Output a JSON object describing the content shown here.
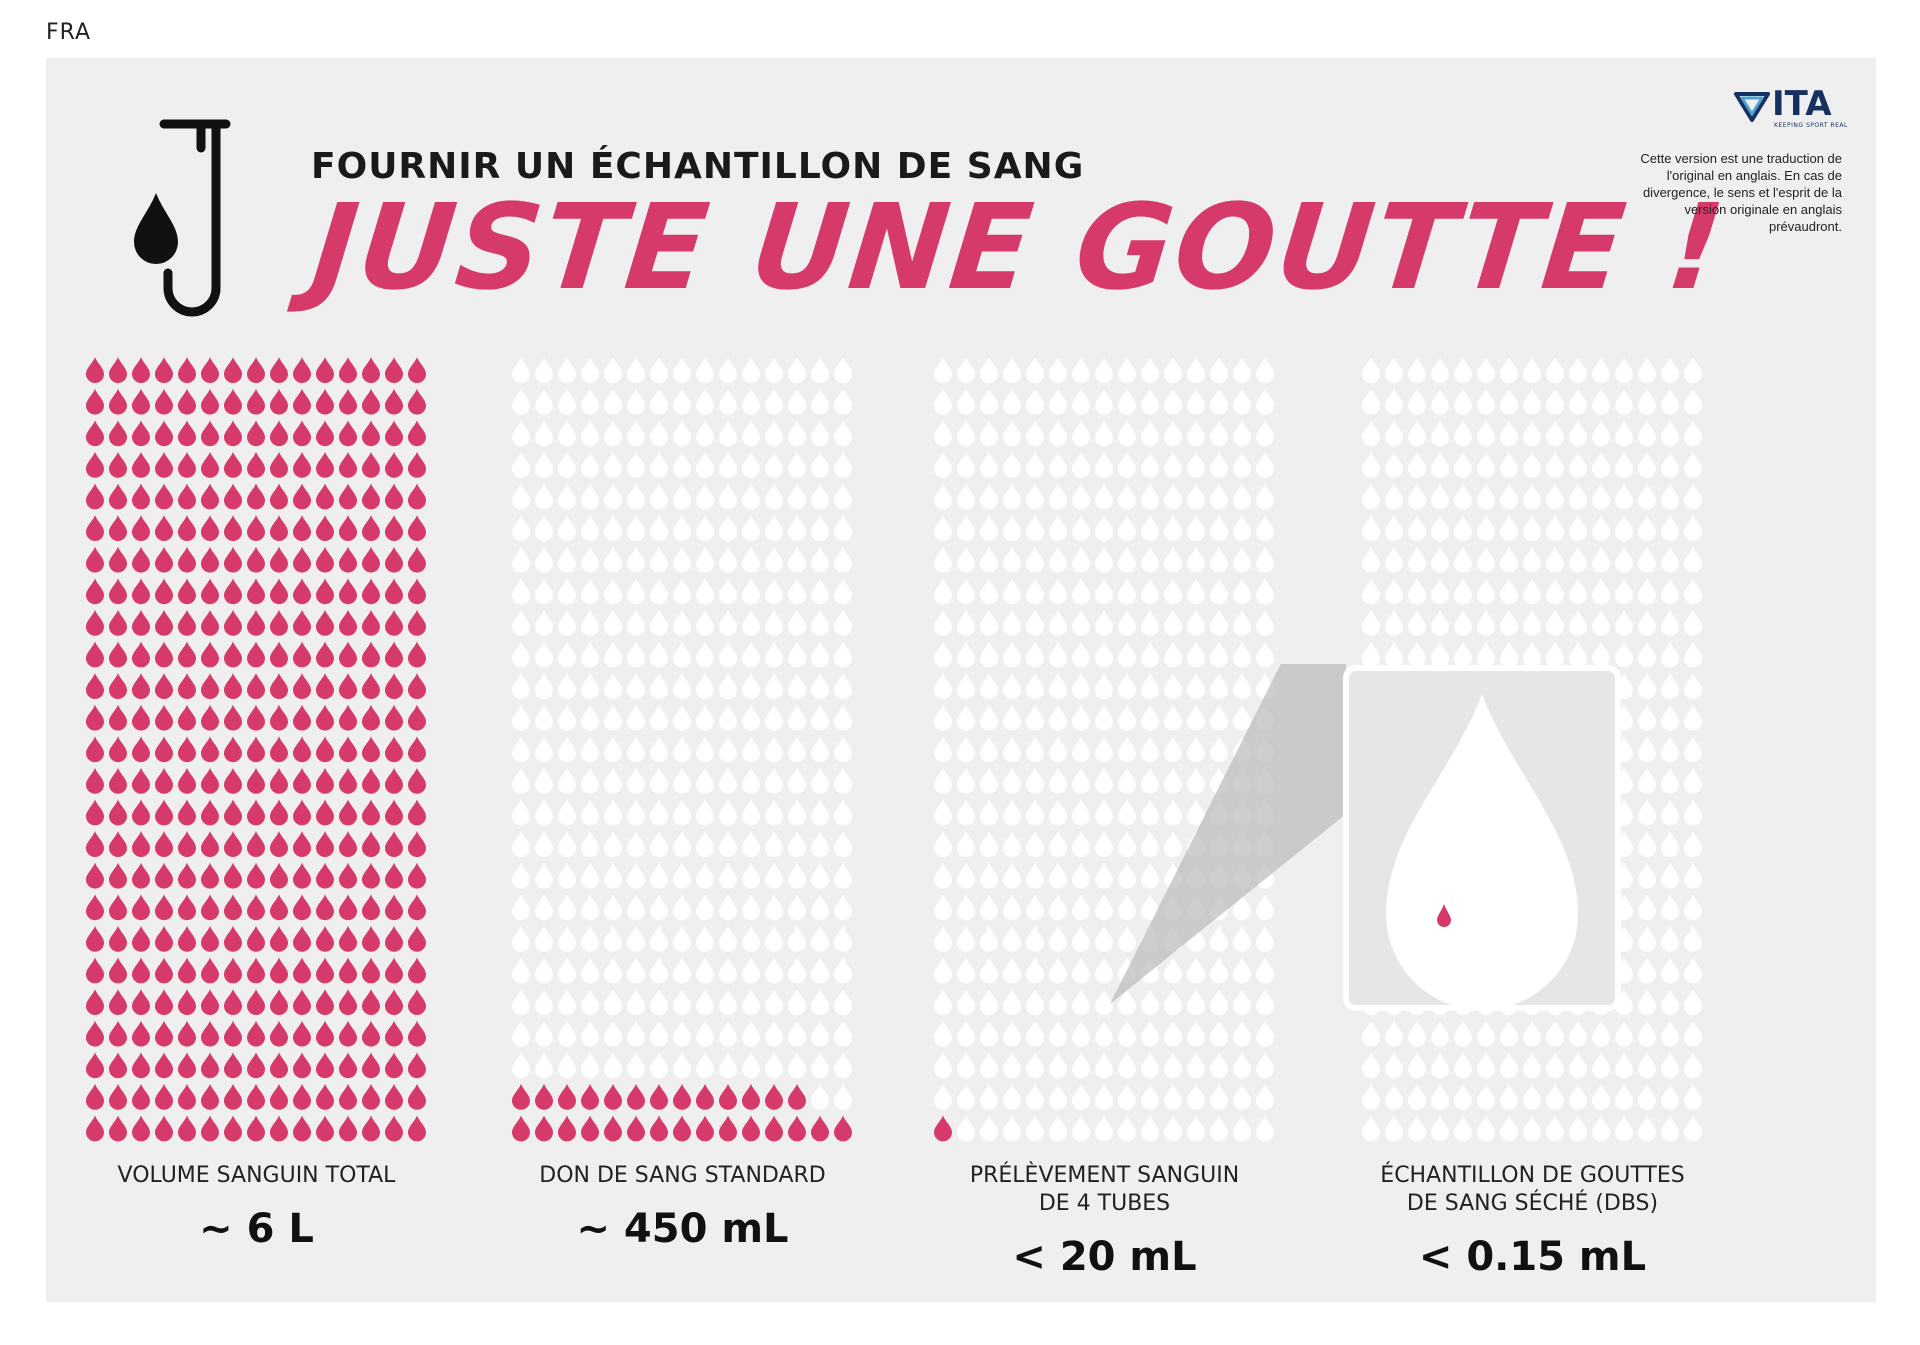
{
  "language_code": "FRA",
  "header": {
    "subtitle": "FOURNIR UN ÉCHANTILLON DE SANG",
    "title": "JUSTE UNE GOUTTE !"
  },
  "logo": {
    "word": "ITA",
    "tagline": "KEEPING SPORT REAL"
  },
  "disclaimer": "Cette version est une traduction de l'original en anglais. En cas de divergence, le sens et l'esprit de la version originale en anglais prévaudront.",
  "colors": {
    "accent": "#d63a6b",
    "empty_drop": "#ffffff",
    "panel": "#efefef",
    "logo": "#16305f"
  },
  "icons": {
    "tube": "test-tube-drop-icon",
    "drop": "blood-drop-icon"
  },
  "grid": {
    "rows": 25,
    "cols": 15
  },
  "columns": [
    {
      "label_line1": "VOLUME SANGUIN TOTAL",
      "label_line2": "",
      "value": "~ 6 L",
      "filled": 375
    },
    {
      "label_line1": "DON DE SANG STANDARD",
      "label_line2": "",
      "value": "~ 450 mL",
      "filled": 28
    },
    {
      "label_line1": "PRÉLÈVEMENT SANGUIN",
      "label_line2": "DE 4 TUBES",
      "value": "< 20 mL",
      "filled": 1
    },
    {
      "label_line1": "ÉCHANTILLON DE GOUTTES",
      "label_line2": "DE SANG SÉCHÉ (DBS)",
      "value": "< 0.15 mL",
      "filled": 0
    }
  ]
}
